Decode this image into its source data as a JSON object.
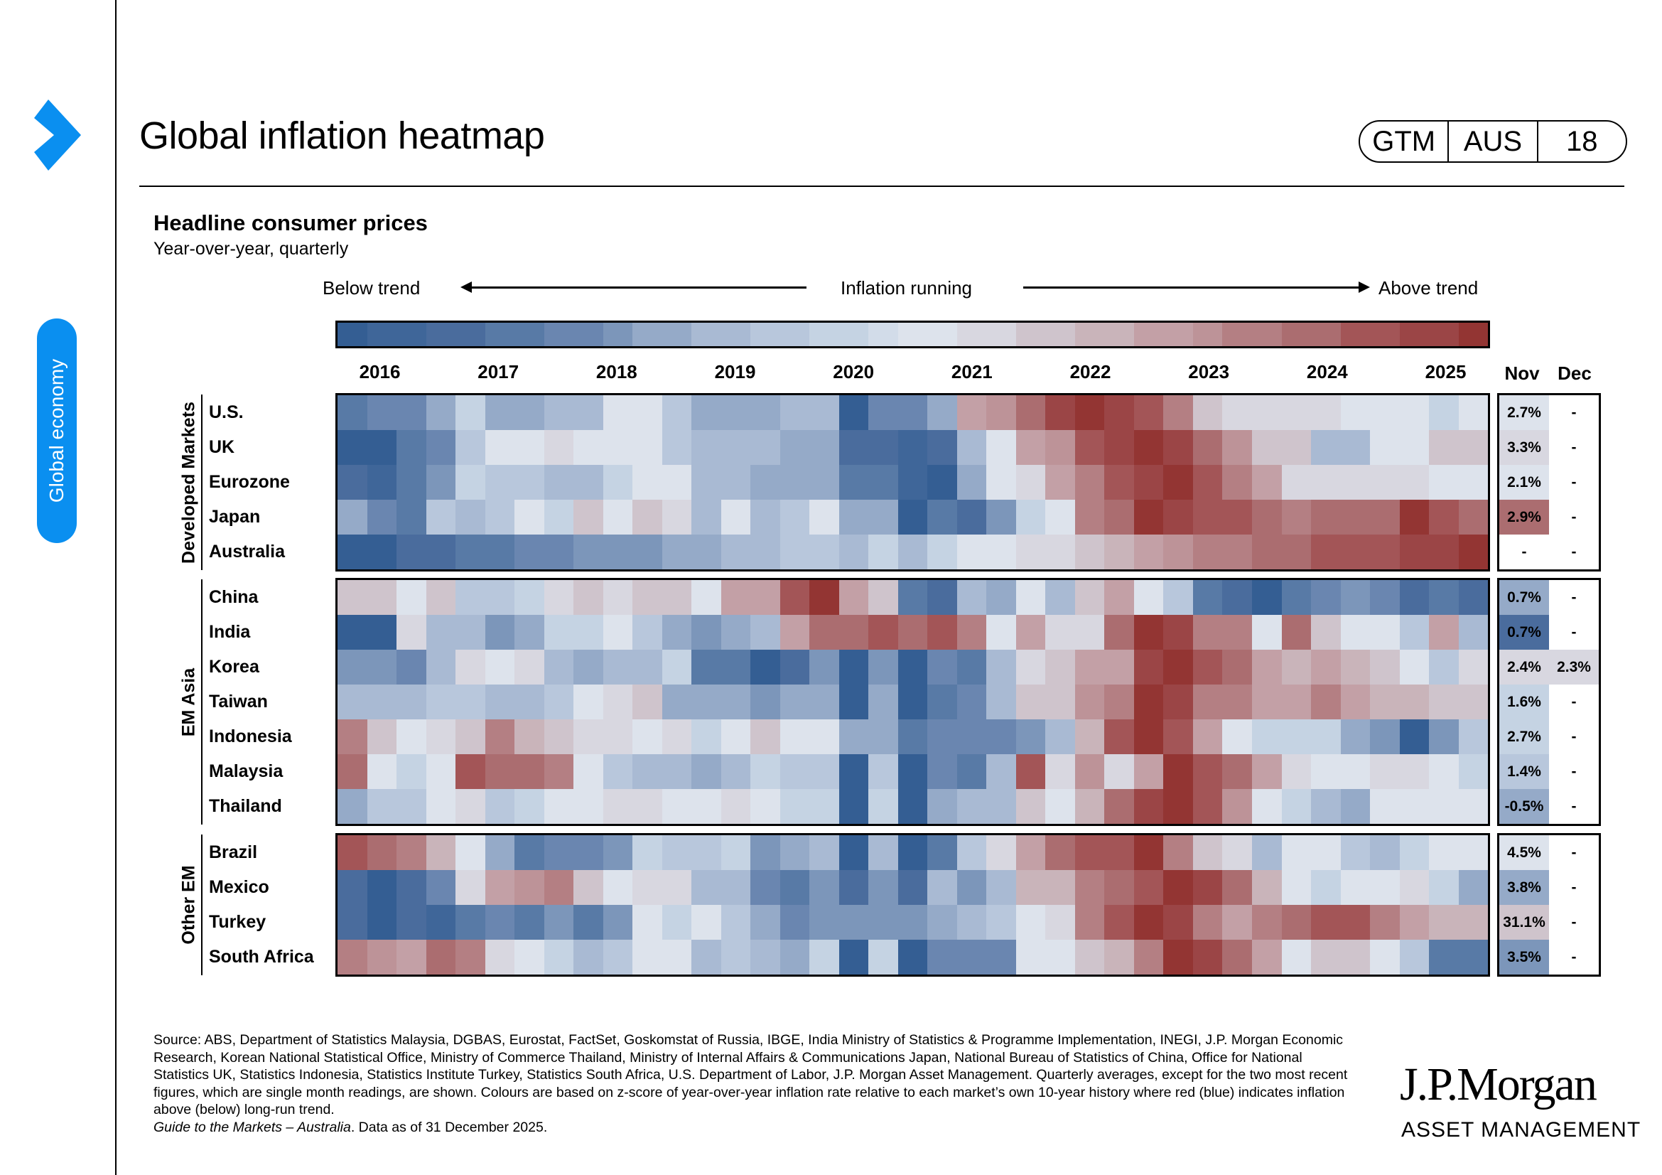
{
  "header": {
    "title": "Global inflation heatmap",
    "badge": [
      "GTM",
      "AUS",
      "18"
    ],
    "section_tab": "Global economy"
  },
  "chart_data": {
    "type": "heatmap",
    "title": "Headline consumer prices",
    "subtitle": "Year-over-year, quarterly",
    "scale": {
      "label_low": "Below trend",
      "label_mid": "Inflation running",
      "label_high": "Above trend",
      "min": -5,
      "max": 5,
      "colors": [
        "#345e93",
        "#3f6699",
        "#4a6c9d",
        "#587aa6",
        "#6a86b0",
        "#7c96ba",
        "#95aac8",
        "#a9bad3",
        "#b8c7dc",
        "#c5d3e3",
        "#d2dce9",
        "#dde3ec",
        "#d8d7e0",
        "#cfc4cc",
        "#c9b4ba",
        "#c3a0a6",
        "#bd9398",
        "#b47f83",
        "#ab6d70",
        "#a35557",
        "#9b4546",
        "#933533"
      ]
    },
    "years": [
      "2016",
      "2017",
      "2018",
      "2019",
      "2020",
      "2021",
      "2022",
      "2023",
      "2024",
      "2025"
    ],
    "quarters_start": "2016 Q1",
    "quarters_end": "2025 Q3",
    "monthly_headers": [
      "Nov",
      "Dec"
    ],
    "groups": [
      {
        "name": "Developed Markets",
        "rows": [
          {
            "country": "U.S.",
            "levels": [
              -3.5,
              -3,
              -3,
              -2,
              -0.5,
              -2,
              -2,
              -1.5,
              -1.5,
              0,
              0,
              -1,
              -2,
              -2,
              -2,
              -1.5,
              -1.5,
              -5,
              -3,
              -3,
              -2,
              2,
              2.5,
              3.5,
              4.5,
              5,
              4.5,
              4,
              3,
              1,
              0.5,
              0.5,
              0.5,
              0.5,
              0,
              0,
              0,
              -0.5,
              0
            ],
            "nov": "2.7%",
            "nov_level": 0,
            "dec": "-",
            "dec_level": null
          },
          {
            "country": "UK",
            "levels": [
              -5,
              -5,
              -3.5,
              -3,
              -1,
              0,
              0,
              0.5,
              0,
              0,
              0,
              -1,
              -1.5,
              -1.5,
              -1.5,
              -2,
              -2,
              -4,
              -4,
              -4.5,
              -4,
              -1.5,
              0,
              2,
              2.5,
              4,
              4.5,
              5,
              4.5,
              3.5,
              2.5,
              1,
              1,
              -1.5,
              -1.5,
              0,
              0,
              1,
              1
            ],
            "nov": "3.3%",
            "nov_level": 0.5,
            "dec": "-",
            "dec_level": null
          },
          {
            "country": "Eurozone",
            "levels": [
              -4,
              -4.5,
              -3.5,
              -2.5,
              -0.5,
              -1,
              -1,
              -1.5,
              -1.5,
              -0.5,
              0,
              0,
              -1.5,
              -1.5,
              -2,
              -2,
              -2,
              -3.5,
              -3.5,
              -4.5,
              -5,
              -2,
              0,
              0.5,
              2,
              3,
              4,
              4.5,
              5,
              4,
              3,
              2,
              0.5,
              0.5,
              0.5,
              0.5,
              0.5,
              0,
              0
            ],
            "nov": "2.1%",
            "nov_level": 0,
            "dec": "-",
            "dec_level": null
          },
          {
            "country": "Japan",
            "levels": [
              -2,
              -3,
              -3.5,
              -1,
              -1.5,
              -1,
              0,
              -0.5,
              1,
              0,
              1,
              0.5,
              -1.5,
              0,
              -1.5,
              -1,
              0,
              -2,
              -2,
              -5,
              -3.5,
              -4,
              -2.5,
              -0.5,
              0,
              3,
              3.5,
              5,
              4.5,
              4,
              4,
              3.5,
              3,
              3.5,
              3.5,
              3.5,
              5,
              4,
              3.5
            ],
            "nov": "2.9%",
            "nov_level": 3.5,
            "dec": "-",
            "dec_level": null
          },
          {
            "country": "Australia",
            "levels": [
              -5,
              -5,
              -4,
              -4,
              -3.5,
              -3.5,
              -3,
              -3,
              -2.5,
              -2.5,
              -2.5,
              -2,
              -2,
              -1.5,
              -1.5,
              -1,
              -1,
              -1.5,
              -0.5,
              -1.5,
              -0.5,
              0,
              0,
              0.5,
              0.5,
              1,
              1.5,
              2,
              2.5,
              3,
              3,
              3.5,
              3.5,
              4,
              4,
              4,
              4.5,
              4.5,
              5
            ],
            "nov": "-",
            "nov_level": null,
            "dec": "-",
            "dec_level": null
          }
        ]
      },
      {
        "name": "EM Asia",
        "rows": [
          {
            "country": "China",
            "levels": [
              1,
              1,
              0,
              1,
              -1,
              -1,
              -0.5,
              0.5,
              1,
              0.5,
              1,
              1,
              0,
              2,
              2,
              4,
              5,
              2,
              1,
              -3.5,
              -4,
              -1.5,
              -2,
              0,
              -1.5,
              1,
              2,
              0,
              -1,
              -3.5,
              -4,
              -5,
              -3.5,
              -3,
              -2.5,
              -3,
              -4,
              -3.5,
              -4
            ],
            "nov": "0.7%",
            "nov_level": -2,
            "dec": "-",
            "dec_level": null
          },
          {
            "country": "India",
            "levels": [
              -5,
              -5,
              0.5,
              -1.5,
              -1.5,
              -2.5,
              -2,
              -0.5,
              -0.5,
              0,
              -1,
              -2,
              -2.5,
              -2,
              -1.5,
              2,
              3.5,
              3.5,
              4,
              3.5,
              4,
              3,
              0,
              2,
              0.5,
              0.5,
              3.5,
              5,
              4.5,
              3,
              3,
              0,
              3.5,
              1,
              0,
              0,
              -1,
              2,
              -1.5,
              -2.5,
              -3
            ],
            "nov": "0.7%",
            "nov_level": -4,
            "dec": "-",
            "dec_level": null
          },
          {
            "country": "Korea",
            "levels": [
              -2.5,
              -2.5,
              -3,
              -1.5,
              0.5,
              0,
              0.5,
              -1.5,
              -2,
              -1.5,
              -1.5,
              -0.5,
              -3.5,
              -3.5,
              -5,
              -4,
              -2.5,
              -5,
              -2.5,
              -5,
              -3,
              -3.5,
              -1.5,
              0.5,
              1,
              2,
              2,
              4.5,
              5,
              4,
              3.5,
              2,
              1.5,
              2,
              1.5,
              1,
              0,
              -1,
              0.5,
              0,
              0
            ],
            "nov": "2.4%",
            "nov_level": 0.5,
            "dec": "2.3%",
            "dec_level": 0.5
          },
          {
            "country": "Taiwan",
            "levels": [
              -1.5,
              -1.5,
              -1.5,
              -1,
              -1,
              -1.5,
              -1.5,
              -1,
              0,
              0.5,
              1,
              -2,
              -2,
              -2,
              -2.5,
              -2,
              -2,
              -5,
              -2,
              -5,
              -3.5,
              -3,
              -1.5,
              1,
              1,
              2.5,
              3,
              5,
              4.5,
              3,
              3,
              2,
              2,
              3,
              2,
              1.5,
              1.5,
              1,
              1,
              0,
              -0.5
            ],
            "nov": "1.6%",
            "nov_level": -0.5,
            "dec": "-",
            "dec_level": null
          },
          {
            "country": "Indonesia",
            "levels": [
              3,
              1,
              0,
              0.5,
              1,
              3,
              1.5,
              1,
              0.5,
              0.5,
              0,
              0.5,
              -0.5,
              0,
              1,
              0,
              0,
              -2,
              -2,
              -3.5,
              -3,
              -3,
              -3,
              -2.5,
              -1.5,
              1.5,
              4,
              5,
              4,
              2,
              0,
              -0.5,
              -0.5,
              -0.5,
              -2,
              -2.5,
              -5,
              -2.5,
              -1
            ],
            "nov": "2.7%",
            "nov_level": -0.5,
            "dec": "-",
            "dec_level": null
          },
          {
            "country": "Malaysia",
            "levels": [
              3.5,
              0,
              -0.5,
              0,
              4,
              3.5,
              3.5,
              3,
              0,
              -1,
              -1.5,
              -1.5,
              -2,
              -1.5,
              -0.5,
              -1,
              -1,
              -5,
              -1,
              -5,
              -3,
              -3.5,
              -1.5,
              4,
              0.5,
              2.5,
              0.5,
              2,
              5,
              4,
              3.5,
              2,
              0.5,
              0,
              0,
              0.5,
              0.5,
              0,
              -0.5,
              -1
            ],
            "nov": "1.4%",
            "nov_level": -1,
            "dec": "-",
            "dec_level": null
          },
          {
            "country": "Thailand",
            "levels": [
              -2,
              -1,
              -1,
              0,
              0.5,
              -1,
              -0.5,
              0,
              0,
              0.5,
              0.5,
              0,
              0,
              0.5,
              0,
              -0.5,
              -0.5,
              -5,
              -0.5,
              -5,
              -2,
              -1.5,
              -1.5,
              1,
              0,
              1.5,
              3.5,
              4.5,
              5,
              4,
              2.5,
              0,
              -0.5,
              -1.5,
              -2,
              0,
              0,
              0,
              0,
              -1.5,
              -2
            ],
            "nov": "-0.5%",
            "nov_level": -2,
            "dec": "-",
            "dec_level": null
          }
        ]
      },
      {
        "name": "Other EM",
        "rows": [
          {
            "country": "Brazil",
            "levels": [
              4,
              3.5,
              3,
              1.5,
              0,
              -2,
              -3.5,
              -3,
              -3,
              -2.5,
              -0.5,
              -1,
              -1,
              -0.5,
              -2.5,
              -2,
              -1.5,
              -5,
              -1.5,
              -5,
              -3.5,
              -1,
              0.5,
              2,
              3.5,
              4,
              4,
              5,
              3,
              1,
              0.5,
              -1.5,
              0,
              0,
              -1,
              -1.5,
              -0.5,
              0,
              0,
              0.5,
              0.5
            ],
            "nov": "4.5%",
            "nov_level": 0,
            "dec": "-",
            "dec_level": null
          },
          {
            "country": "Mexico",
            "levels": [
              -4,
              -5,
              -4,
              -3,
              0.5,
              2,
              2.5,
              3,
              1,
              0,
              0.5,
              0.5,
              -1.5,
              -1.5,
              -3,
              -3.5,
              -2.5,
              -4,
              -2.5,
              -4,
              -1.5,
              -2.5,
              -1.5,
              1.5,
              1.5,
              3,
              3.5,
              4,
              5,
              4.5,
              3.5,
              1.5,
              0,
              -0.5,
              0,
              0,
              0.5,
              -0.5,
              -2,
              -1,
              -2
            ],
            "nov": "3.8%",
            "nov_level": -2,
            "dec": "-",
            "dec_level": null
          },
          {
            "country": "Turkey",
            "levels": [
              -4,
              -5,
              -4,
              -4.5,
              -3.5,
              -3,
              -3.5,
              -2.5,
              -3.5,
              -2.5,
              0,
              -0.5,
              0,
              -1,
              -2,
              -3,
              -2.5,
              -2.5,
              -2.5,
              -2.5,
              -2,
              -1.5,
              -1,
              0,
              0.5,
              3,
              4,
              5,
              4.5,
              3,
              2,
              3,
              3.5,
              4,
              4,
              3,
              2,
              1.5,
              1.5,
              1
            ],
            "nov": "31.1%",
            "nov_level": 1,
            "dec": "-",
            "dec_level": null
          },
          {
            "country": "South Africa",
            "levels": [
              3,
              2.5,
              2,
              3.5,
              3,
              0.5,
              0,
              -0.5,
              -1.5,
              -1,
              0,
              0,
              -1.5,
              -1,
              -1.5,
              -2,
              -0.5,
              -5,
              -0.5,
              -5,
              -3,
              -3,
              -3,
              0,
              0,
              1,
              1.5,
              3,
              5,
              4.5,
              3.5,
              2,
              0,
              1,
              1,
              0,
              -1,
              -3.5,
              -3.5,
              -3.5,
              -3
            ],
            "nov": "3.5%",
            "nov_level": -2.5,
            "dec": "-",
            "dec_level": null
          }
        ]
      }
    ]
  },
  "footer": {
    "source": "Source: ABS, Department of Statistics Malaysia, DGBAS, Eurostat, FactSet, Goskomstat of Russia, IBGE, India Ministry of Statistics & Programme Implementation, INEGI, J.P. Morgan Economic Research, Korean National Statistical Office, Ministry of Commerce Thailand, Ministry of Internal Affairs & Communications Japan, National Bureau of Statistics of China, Office for National Statistics UK, Statistics Indonesia, Statistics Institute Turkey, Statistics South Africa, U.S. Department of Labor, J.P. Morgan Asset Management. Quarterly averages, except for the two most recent figures, which are single month readings, are shown. Colours are based on z-score of year-over-year inflation rate relative to each market’s own 10-year history where red (blue) indicates inflation above (below) long-run trend.",
    "guide_italic": "Guide to the Markets – Australia",
    "as_of": ". Data as of 31 December 2025.",
    "logo_main": "J.P.Morgan",
    "logo_sub": "ASSET MANAGEMENT"
  }
}
